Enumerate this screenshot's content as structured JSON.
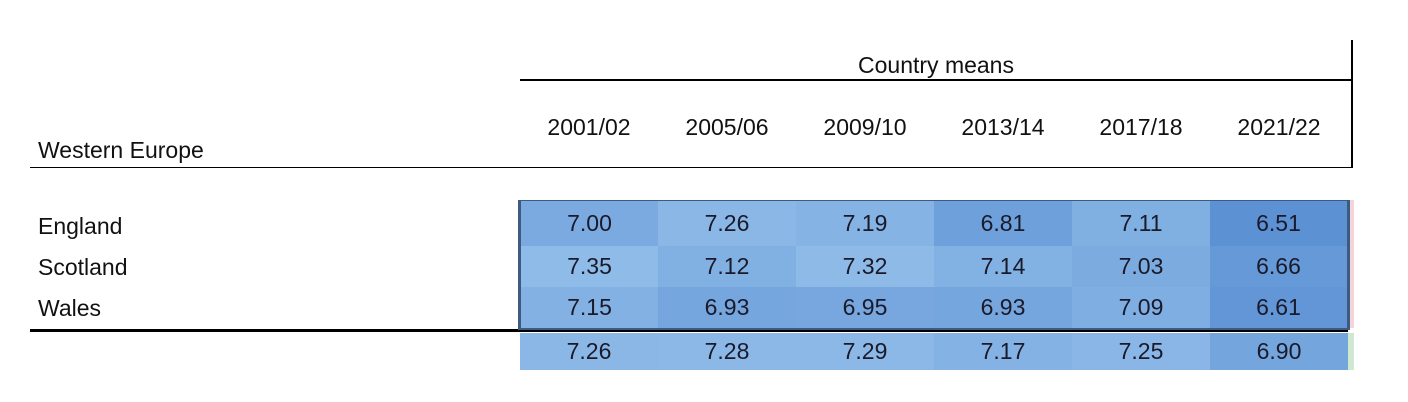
{
  "table": {
    "group_label": "Country means",
    "row_header": "Western Europe",
    "columns": [
      "2001/02",
      "2005/06",
      "2009/10",
      "2013/14",
      "2017/18",
      "2021/22"
    ],
    "rows": [
      {
        "label": "England",
        "values": [
          "7.00",
          "7.26",
          "7.19",
          "6.81",
          "7.11",
          "6.51"
        ]
      },
      {
        "label": "Scotland",
        "values": [
          "7.35",
          "7.12",
          "7.32",
          "7.14",
          "7.03",
          "6.66"
        ]
      },
      {
        "label": "Wales",
        "values": [
          "7.15",
          "6.93",
          "6.95",
          "6.93",
          "7.09",
          "6.61"
        ]
      }
    ],
    "total": [
      "7.26",
      "7.28",
      "7.29",
      "7.17",
      "7.25",
      "6.90"
    ]
  }
}
